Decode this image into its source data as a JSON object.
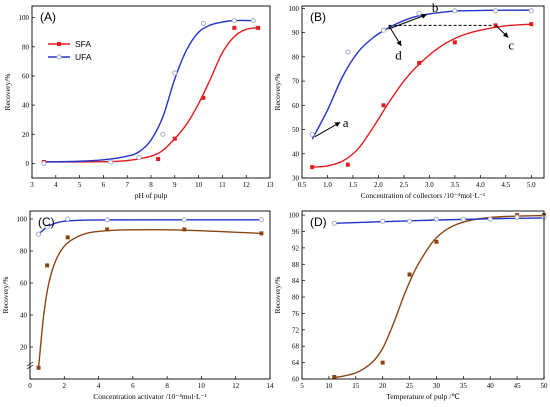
{
  "colors": {
    "sfa": "#e41a1c",
    "ufa": "#2233cc",
    "brown": "#8b4513",
    "hollow": "#9aa3c8"
  },
  "chart_data": [
    {
      "id": "A",
      "panel_label": "(A)",
      "type": "scatter",
      "xlabel": "pH of pulp",
      "ylabel": "Recovery/%",
      "xlim": [
        3,
        13
      ],
      "ylim": [
        -10,
        108
      ],
      "xticks": [
        3,
        4,
        5,
        6,
        7,
        8,
        9,
        10,
        11,
        12,
        13
      ],
      "yticks": [
        0,
        20,
        40,
        60,
        80,
        100
      ],
      "legend": {
        "position": "top-left",
        "entries": [
          "SFA",
          "UFA"
        ]
      },
      "series": [
        {
          "name": "SFA",
          "marker": "square",
          "color": "sfa",
          "x": [
            3.5,
            6.3,
            8.3,
            9.0,
            10.2,
            11.5,
            12.5
          ],
          "y": [
            1,
            1,
            3,
            17,
            45,
            93,
            93
          ],
          "fit": [
            [
              3.5,
              1
            ],
            [
              6,
              1.2
            ],
            [
              7,
              2
            ],
            [
              8,
              5
            ],
            [
              8.5,
              9
            ],
            [
              9,
              17
            ],
            [
              9.5,
              27
            ],
            [
              10,
              41
            ],
            [
              10.5,
              58
            ],
            [
              11,
              76
            ],
            [
              11.5,
              87
            ],
            [
              12,
              92
            ],
            [
              12.5,
              93
            ]
          ]
        },
        {
          "name": "UFA",
          "marker": "circle",
          "color": "ufa",
          "x": [
            3.5,
            6.3,
            7.5,
            8.5,
            9.0,
            10.2,
            11.5,
            12.3
          ],
          "y": [
            0,
            1,
            4,
            20,
            62,
            96,
            98,
            98
          ],
          "fit": [
            [
              3.5,
              1
            ],
            [
              5,
              1.5
            ],
            [
              6,
              2.5
            ],
            [
              7,
              5
            ],
            [
              7.5,
              8
            ],
            [
              8,
              16
            ],
            [
              8.5,
              32
            ],
            [
              9,
              58
            ],
            [
              9.5,
              78
            ],
            [
              10,
              90
            ],
            [
              10.5,
              95
            ],
            [
              11,
              97
            ],
            [
              11.5,
              98
            ],
            [
              12.3,
              98
            ]
          ]
        }
      ]
    },
    {
      "id": "B",
      "panel_label": "(B)",
      "type": "scatter",
      "xlabel": "Concentration of collectors /10⁻⁴mol·L⁻¹",
      "ylabel": "Recovery/%",
      "xlim": [
        0.5,
        5.25
      ],
      "ylim": [
        30,
        101
      ],
      "xticks": [
        0.5,
        1.0,
        1.5,
        2.0,
        2.5,
        3.0,
        3.5,
        4.0,
        4.5,
        5.0
      ],
      "xtick_labels": [
        "0.5",
        "1.0",
        "1.5",
        "2.0",
        "2.5",
        "3.0",
        "3.5",
        "4.0",
        "4.5",
        "5.0"
      ],
      "yticks": [
        30,
        40,
        50,
        60,
        70,
        80,
        90,
        100
      ],
      "annotations": [
        "a",
        "b",
        "c",
        "d"
      ],
      "dashed_level": 93,
      "series": [
        {
          "name": "",
          "marker": "square",
          "color": "sfa",
          "x": [
            0.7,
            1.4,
            2.1,
            2.8,
            3.5,
            4.3,
            5.0
          ],
          "y": [
            34.5,
            35.5,
            60,
            77.5,
            86,
            93,
            93.5
          ],
          "fit": [
            [
              0.7,
              34.5
            ],
            [
              1.0,
              35
            ],
            [
              1.3,
              37
            ],
            [
              1.6,
              42
            ],
            [
              1.9,
              51
            ],
            [
              2.2,
              61
            ],
            [
              2.5,
              70
            ],
            [
              2.8,
              77
            ],
            [
              3.2,
              84
            ],
            [
              3.6,
              88.5
            ],
            [
              4.0,
              91
            ],
            [
              4.5,
              92.8
            ],
            [
              5.0,
              93.5
            ]
          ]
        },
        {
          "name": "",
          "marker": "circle",
          "color": "ufa",
          "x": [
            0.7,
            1.4,
            2.1,
            2.8,
            3.5,
            4.3,
            5.0
          ],
          "y": [
            48,
            82,
            91,
            98,
            99,
            99,
            99
          ],
          "fit": [
            [
              0.7,
              46
            ],
            [
              1.0,
              58
            ],
            [
              1.3,
              72
            ],
            [
              1.6,
              82
            ],
            [
              1.9,
              88
            ],
            [
              2.2,
              92
            ],
            [
              2.5,
              95
            ],
            [
              2.8,
              97
            ],
            [
              3.2,
              98.3
            ],
            [
              3.6,
              99
            ],
            [
              4.2,
              99.2
            ],
            [
              5.0,
              99.3
            ]
          ]
        }
      ]
    },
    {
      "id": "C",
      "panel_label": "(C)",
      "type": "scatter",
      "xlabel": "Concentration  activator /10⁻⁴mol·L⁻¹",
      "ylabel": "Recovery/%",
      "xlim": [
        0,
        14
      ],
      "ylim": [
        0,
        105
      ],
      "xticks": [
        0,
        2,
        4,
        6,
        8,
        10,
        12,
        14
      ],
      "yticks": [
        0,
        20,
        40,
        60,
        80,
        100
      ],
      "ytick_labels": [
        "",
        "20",
        "40",
        "60",
        "80",
        "100"
      ],
      "series": [
        {
          "name": "",
          "marker": "square",
          "color": "brown",
          "x": [
            0.5,
            1.0,
            2.2,
            4.5,
            9.0,
            13.5
          ],
          "y": [
            7,
            71,
            88.5,
            93.5,
            93.5,
            91
          ],
          "fit": [
            [
              0.5,
              7
            ],
            [
              0.8,
              40
            ],
            [
              1.1,
              60
            ],
            [
              1.5,
              74
            ],
            [
              2,
              83
            ],
            [
              2.6,
              88
            ],
            [
              3.5,
              91.5
            ],
            [
              5,
              93
            ],
            [
              7,
              93.3
            ],
            [
              9,
              93
            ],
            [
              11,
              92.2
            ],
            [
              13.5,
              91
            ]
          ]
        },
        {
          "name": "",
          "marker": "circle",
          "color": "ufa",
          "x": [
            0.5,
            1.0,
            2.2,
            4.5,
            9.0,
            13.5
          ],
          "y": [
            90.5,
            95,
            100,
            99.5,
            99.5,
            99.5
          ],
          "fit": [
            [
              0.5,
              90.5
            ],
            [
              1,
              95
            ],
            [
              1.6,
              97.8
            ],
            [
              2.5,
              99
            ],
            [
              4,
              99.4
            ],
            [
              9,
              99.5
            ],
            [
              13.5,
              99.5
            ]
          ]
        }
      ]
    },
    {
      "id": "D",
      "panel_label": "(D)",
      "type": "scatter",
      "xlabel": "Temperature of pulp /℃",
      "ylabel": "Recovery/%",
      "xlim": [
        5,
        50
      ],
      "ylim": [
        60,
        101
      ],
      "xticks": [
        5,
        10,
        15,
        20,
        25,
        30,
        35,
        40,
        45,
        50
      ],
      "yticks": [
        60,
        64,
        68,
        72,
        76,
        80,
        84,
        88,
        92,
        96,
        100
      ],
      "series": [
        {
          "name": "",
          "marker": "square",
          "color": "brown",
          "x": [
            11,
            20,
            25,
            30,
            45,
            50
          ],
          "y": [
            60.5,
            64,
            85.5,
            93.5,
            100,
            100
          ],
          "fit": [
            [
              11,
              60.3
            ],
            [
              15,
              61.5
            ],
            [
              18,
              64
            ],
            [
              20,
              67.5
            ],
            [
              22,
              73.5
            ],
            [
              24,
              80.5
            ],
            [
              26,
              86.5
            ],
            [
              28,
              91
            ],
            [
              30,
              94.5
            ],
            [
              33,
              97.3
            ],
            [
              37,
              98.9
            ],
            [
              42,
              99.6
            ],
            [
              50,
              99.9
            ]
          ]
        },
        {
          "name": "",
          "marker": "circle",
          "color": "ufa",
          "x": [
            11,
            20,
            25,
            30,
            35,
            40,
            45,
            50
          ],
          "y": [
            98,
            98.5,
            98.5,
            99,
            99,
            99,
            99.5,
            99.5
          ],
          "fit": [
            [
              11,
              98
            ],
            [
              20,
              98.4
            ],
            [
              30,
              98.8
            ],
            [
              40,
              99.1
            ],
            [
              50,
              99.3
            ]
          ]
        }
      ]
    }
  ]
}
